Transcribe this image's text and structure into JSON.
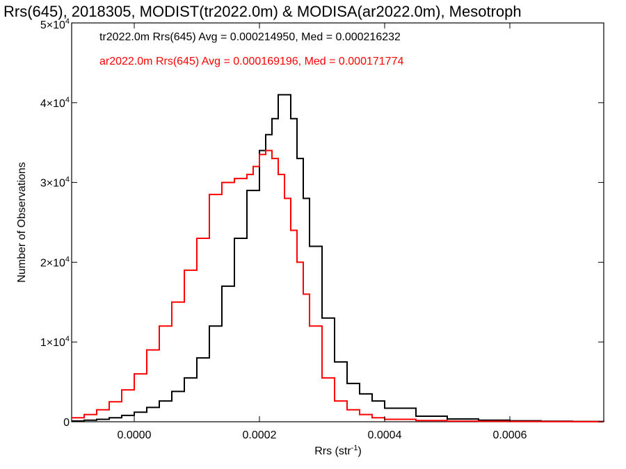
{
  "chart_data": {
    "type": "line",
    "title": "Rrs(645), 2018305, MODIST(tr2022.0m) & MODISA(ar2022.0m), Mesotroph",
    "xlabel": "Rrs (str",
    "xlabel_sup": "-1",
    "xlabel_tail": ")",
    "ylabel": "Number of Observations",
    "xlim": [
      -0.0001,
      0.00075
    ],
    "ylim": [
      0,
      50000
    ],
    "x_ticks": [
      0.0,
      0.0002,
      0.0004,
      0.0006
    ],
    "x_tick_labels": [
      "0.0000",
      "0.0002",
      "0.0004",
      "0.0006"
    ],
    "y_ticks": [
      0,
      10000,
      20000,
      30000,
      40000,
      50000
    ],
    "y_tick_labels": [
      {
        "base": "0",
        "exp": ""
      },
      {
        "base": "1×10",
        "exp": "4"
      },
      {
        "base": "2×10",
        "exp": "4"
      },
      {
        "base": "3×10",
        "exp": "4"
      },
      {
        "base": "4×10",
        "exp": "4"
      },
      {
        "base": "5×10",
        "exp": "4"
      }
    ],
    "grid": false,
    "legend_position": "top-left",
    "annotations": [
      "tr2022.0m Rrs(645) Avg = 0.000214950, Med = 0.000216232",
      "ar2022.0m Rrs(645) Avg = 0.000169196, Med = 0.000171774"
    ],
    "series": [
      {
        "color": "#000000",
        "x": [
          -0.0001,
          -8e-05,
          -6e-05,
          -4e-05,
          -2e-05,
          0.0,
          2e-05,
          4e-05,
          6e-05,
          8e-05,
          0.0001,
          0.00012,
          0.00014,
          0.00016,
          0.00018,
          0.0002,
          0.00021,
          0.00022,
          0.00023,
          0.00024,
          0.00025,
          0.00026,
          0.00027,
          0.00028,
          0.0003,
          0.00032,
          0.00034,
          0.00036,
          0.00038,
          0.0004,
          0.00045,
          0.0005,
          0.00055,
          0.0006,
          0.00065,
          0.0007,
          0.00075
        ],
        "y": [
          100,
          200,
          300,
          500,
          800,
          1200,
          1800,
          2600,
          3800,
          5500,
          8000,
          12000,
          17000,
          23000,
          29000,
          34000,
          36000,
          38000,
          41000,
          41000,
          38000,
          33000,
          28000,
          22000,
          13000,
          7500,
          4800,
          3500,
          2600,
          1700,
          700,
          350,
          200,
          120,
          70,
          30,
          0
        ]
      },
      {
        "color": "#ff0000",
        "x": [
          -0.0001,
          -8e-05,
          -6e-05,
          -4e-05,
          -2e-05,
          0.0,
          2e-05,
          4e-05,
          6e-05,
          8e-05,
          0.0001,
          0.00012,
          0.00014,
          0.00016,
          0.00018,
          0.00019,
          0.0002,
          0.00021,
          0.00022,
          0.00023,
          0.00024,
          0.00025,
          0.00026,
          0.00027,
          0.00028,
          0.0003,
          0.00032,
          0.00034,
          0.00036,
          0.00038,
          0.0004,
          0.00045,
          0.0005,
          0.00055,
          0.0006,
          0.00065,
          0.0007,
          0.00075
        ],
        "y": [
          500,
          900,
          1500,
          2500,
          4000,
          6000,
          9000,
          12000,
          15000,
          19000,
          23000,
          28500,
          30000,
          30500,
          31000,
          32000,
          33500,
          34000,
          33000,
          31000,
          28000,
          24000,
          20000,
          16000,
          12000,
          5500,
          2600,
          1500,
          900,
          500,
          300,
          150,
          80,
          50,
          30,
          20,
          10,
          0
        ]
      }
    ]
  }
}
